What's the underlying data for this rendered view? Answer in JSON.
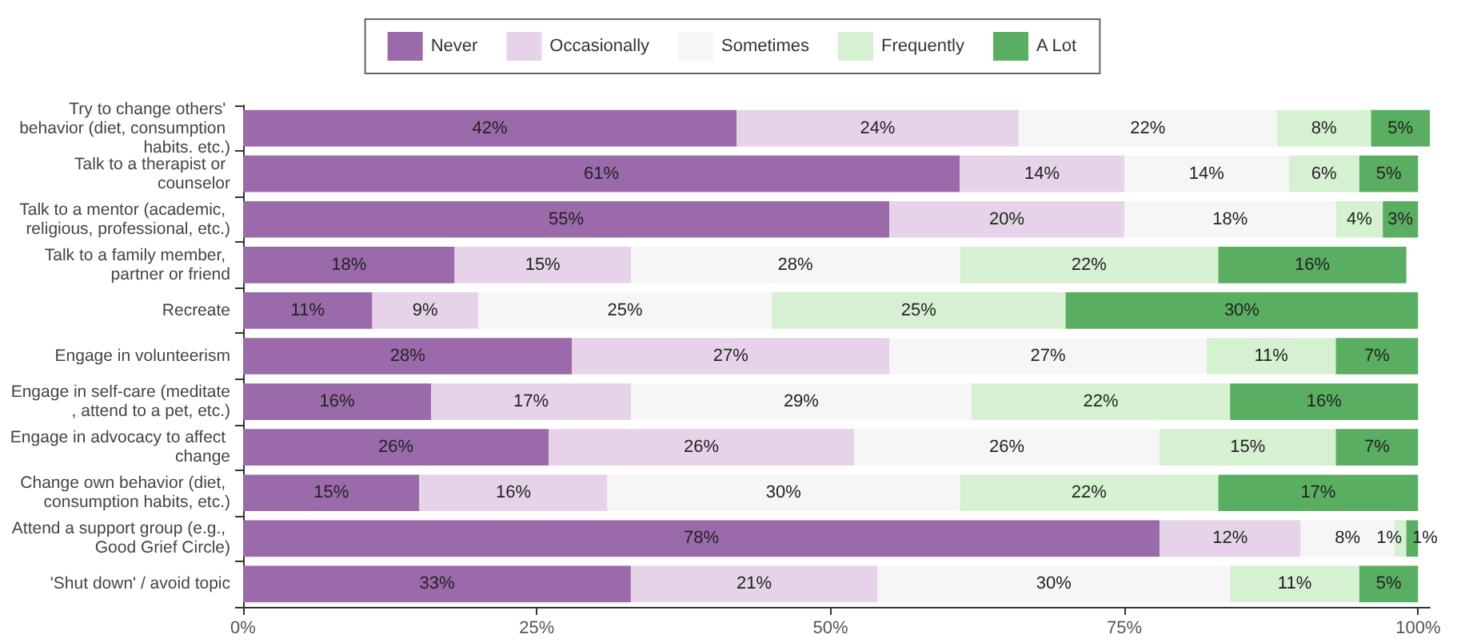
{
  "chart_data": {
    "type": "bar",
    "orientation": "horizontal",
    "stacked": true,
    "grid": false,
    "legend": "top",
    "categories": [
      "Try to change others' behavior (diet, consumption habits. etc.)",
      "Talk to a therapist or counselor",
      "Talk to a mentor (academic, religious, professional, etc.)",
      "Talk to a family member, partner or friend",
      "Recreate",
      "Engage in volunteerism",
      "Engage in self-care (meditate, attend to a pet, etc.)",
      "Engage in advocacy to affect change",
      "Change own behavior (diet, consumption habits, etc.)",
      "Attend a support group (e.g., Good Grief Circle)",
      "'Shut down' / avoid topic"
    ],
    "series": [
      {
        "name": "Never",
        "color": "#9a6aab",
        "values": [
          42,
          61,
          55,
          18,
          11,
          28,
          16,
          26,
          15,
          78,
          33
        ],
        "value_labels": [
          "42%",
          "61%",
          "55%",
          "18%",
          "11%",
          "28%",
          "16%",
          "26%",
          "15%",
          "78%",
          "33%"
        ]
      },
      {
        "name": "Occasionally",
        "color": "#e6d3e9",
        "values": [
          24,
          14,
          20,
          15,
          9,
          27,
          17,
          26,
          16,
          12,
          21
        ],
        "value_labels": [
          "24%",
          "14%",
          "20%",
          "15%",
          "9%",
          "27%",
          "17%",
          "26%",
          "16%",
          "12%",
          "21%"
        ]
      },
      {
        "name": "Sometimes",
        "color": "#f6f6f6",
        "values": [
          22,
          14,
          18,
          28,
          25,
          27,
          29,
          26,
          30,
          8,
          30
        ],
        "value_labels": [
          "22%",
          "14%",
          "18%",
          "28%",
          "25%",
          "27%",
          "29%",
          "26%",
          "30%",
          "8%",
          "30%"
        ]
      },
      {
        "name": "Frequently",
        "color": "#d6f0d2",
        "values": [
          8,
          6,
          4,
          22,
          25,
          11,
          22,
          15,
          22,
          1,
          11
        ],
        "value_labels": [
          "8%",
          "6%",
          "4%",
          "22%",
          "25%",
          "11%",
          "22%",
          "15%",
          "22%",
          "1%",
          "11%"
        ]
      },
      {
        "name": "A Lot",
        "color": "#5aae61",
        "values": [
          5,
          5,
          3,
          16,
          30,
          7,
          16,
          7,
          17,
          1,
          5
        ],
        "value_labels": [
          "5%",
          "5%",
          "3%",
          "16%",
          "30%",
          "7%",
          "16%",
          "7%",
          "17%",
          "1%",
          "5%"
        ]
      }
    ],
    "xlim": [
      0,
      101
    ],
    "xticks": [
      {
        "value": 0,
        "label": "0%"
      },
      {
        "value": 25,
        "label": "25%"
      },
      {
        "value": 50,
        "label": "50%"
      },
      {
        "value": 75,
        "label": "75%"
      },
      {
        "value": 100,
        "label": "100%"
      }
    ]
  }
}
